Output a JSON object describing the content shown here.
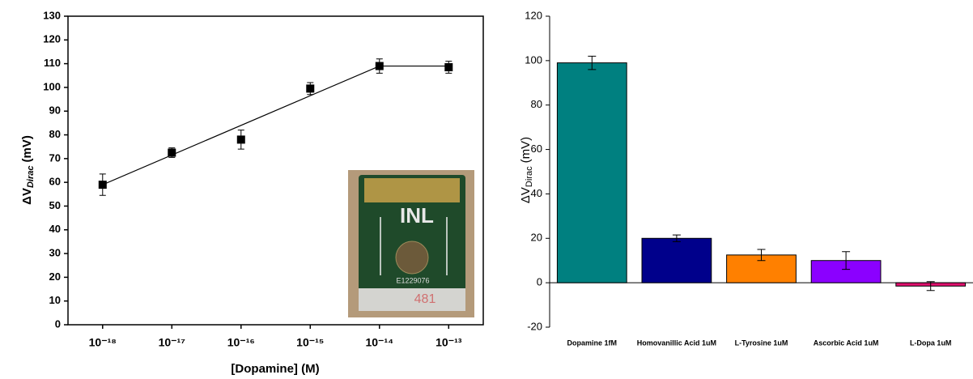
{
  "chart_data": [
    {
      "type": "scatter",
      "x_label": "[Dopamine] (M)",
      "y_label": {
        "main": "ΔV",
        "sub": "Dirac",
        "unit": "(mV)"
      },
      "x": [
        1e-18,
        1e-17,
        1e-16,
        1e-15,
        1e-14,
        1e-13
      ],
      "series": [
        {
          "color": "#000000",
          "values": [
            59,
            72.5,
            78,
            99.5,
            109,
            108.5
          ],
          "errors": [
            4.5,
            2,
            4,
            2.5,
            3,
            2.5
          ]
        }
      ],
      "fit": {
        "x": [
          1e-18,
          1e-14,
          1e-13
        ],
        "values": [
          59,
          109,
          109
        ],
        "color": "#000000"
      },
      "log_x": true,
      "xlim": [
        3.16e-19,
        3.16e-13
      ],
      "xticks": [
        {
          "value": 1e-18,
          "label": "10⁻¹⁸"
        },
        {
          "value": 1e-17,
          "label": "10⁻¹⁷"
        },
        {
          "value": 1e-16,
          "label": "10⁻¹⁶"
        },
        {
          "value": 1e-15,
          "label": "10⁻¹⁵"
        },
        {
          "value": 1e-14,
          "label": "10⁻¹⁴"
        },
        {
          "value": 1e-13,
          "label": "10⁻¹³"
        }
      ],
      "ylim": [
        0,
        130
      ],
      "yticks": [
        0,
        10,
        20,
        30,
        40,
        50,
        60,
        70,
        80,
        90,
        100,
        110,
        120,
        130
      ],
      "inset": {
        "logo": "INL",
        "serial": "E1229076",
        "marking": "481"
      }
    },
    {
      "type": "bar",
      "y_label": {
        "main": "ΔV",
        "sub": "Dirac",
        "unit": "(mV)"
      },
      "categories": [
        "Dopamine 1fM",
        "Homovanillic Acid 1uM",
        "L-Tyrosine 1uM",
        "Ascorbic Acid 1uM",
        "L-Dopa 1uM"
      ],
      "values": [
        99,
        20,
        12.5,
        10,
        -1.5
      ],
      "errors": [
        3,
        1.5,
        2.5,
        4,
        2
      ],
      "colors": [
        "#008080",
        "#00008b",
        "#ff8000",
        "#8b00ff",
        "#e0106e"
      ],
      "ylim": [
        -20,
        120
      ],
      "yticks": [
        -20,
        0,
        20,
        40,
        60,
        80,
        100,
        120
      ]
    }
  ]
}
